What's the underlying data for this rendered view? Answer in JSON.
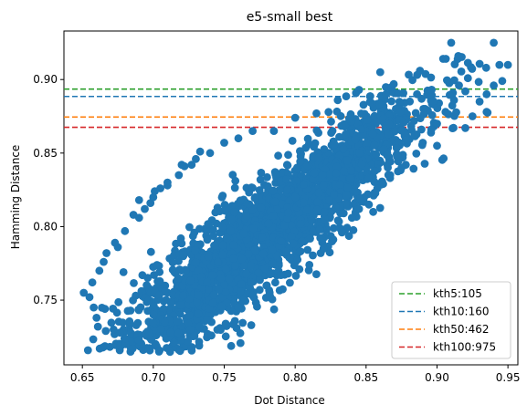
{
  "chart_data": {
    "type": "scatter",
    "title": "e5-small best",
    "xlabel": "Dot Distance",
    "ylabel": "Hamming Distance",
    "xlim": [
      0.637,
      0.957
    ],
    "ylim": [
      0.706,
      0.933
    ],
    "xticks": [
      0.65,
      0.7,
      0.75,
      0.8,
      0.85,
      0.9,
      0.95
    ],
    "xtick_labels": [
      "0.65",
      "0.70",
      "0.75",
      "0.80",
      "0.85",
      "0.90",
      "0.95"
    ],
    "yticks": [
      0.75,
      0.8,
      0.85,
      0.9
    ],
    "ytick_labels": [
      "0.75",
      "0.80",
      "0.85",
      "0.90"
    ],
    "grid": false,
    "legend_position": "lower-right",
    "point_color": "#1f77b4",
    "scatter": {
      "description_trend": "dense elongated cloud, positive correlation",
      "points": [
        [
          0.651,
          0.755
        ],
        [
          0.655,
          0.752
        ],
        [
          0.658,
          0.745
        ],
        [
          0.66,
          0.738
        ],
        [
          0.665,
          0.776
        ],
        [
          0.672,
          0.73
        ],
        [
          0.675,
          0.786
        ],
        [
          0.679,
          0.769
        ],
        [
          0.68,
          0.724
        ],
        [
          0.688,
          0.733
        ],
        [
          0.686,
          0.808
        ],
        [
          0.69,
          0.818
        ],
        [
          0.694,
          0.812
        ],
        [
          0.698,
          0.816
        ],
        [
          0.701,
          0.824
        ],
        [
          0.705,
          0.826
        ],
        [
          0.71,
          0.828
        ],
        [
          0.708,
          0.735
        ],
        [
          0.704,
          0.715
        ],
        [
          0.712,
          0.728
        ],
        [
          0.718,
          0.835
        ],
        [
          0.722,
          0.841
        ],
        [
          0.727,
          0.842
        ],
        [
          0.733,
          0.851
        ],
        [
          0.726,
          0.73
        ],
        [
          0.741,
          0.726
        ],
        [
          0.747,
          0.731
        ],
        [
          0.751,
          0.734
        ],
        [
          0.757,
          0.748
        ],
        [
          0.763,
          0.75
        ],
        [
          0.77,
          0.753
        ],
        [
          0.775,
          0.757
        ],
        [
          0.782,
          0.755
        ],
        [
          0.786,
          0.762
        ],
        [
          0.79,
          0.767
        ],
        [
          0.795,
          0.768
        ],
        [
          0.803,
          0.771
        ],
        [
          0.81,
          0.774
        ],
        [
          0.818,
          0.782
        ],
        [
          0.826,
          0.79
        ],
        [
          0.833,
          0.796
        ],
        [
          0.84,
          0.806
        ],
        [
          0.845,
          0.812
        ],
        [
          0.852,
          0.815
        ],
        [
          0.858,
          0.826
        ],
        [
          0.862,
          0.829
        ],
        [
          0.867,
          0.835
        ],
        [
          0.872,
          0.848
        ],
        [
          0.878,
          0.842
        ],
        [
          0.884,
          0.862
        ],
        [
          0.889,
          0.866
        ],
        [
          0.9,
          0.87
        ],
        [
          0.906,
          0.878
        ],
        [
          0.912,
          0.886
        ],
        [
          0.92,
          0.892
        ],
        [
          0.925,
          0.875
        ],
        [
          0.93,
          0.885
        ],
        [
          0.935,
          0.89
        ],
        [
          0.94,
          0.896
        ],
        [
          0.944,
          0.91
        ],
        [
          0.946,
          0.899
        ],
        [
          0.94,
          0.925
        ],
        [
          0.91,
          0.925
        ],
        [
          0.915,
          0.916
        ],
        [
          0.888,
          0.906
        ],
        [
          0.86,
          0.905
        ],
        [
          0.845,
          0.893
        ],
        [
          0.83,
          0.886
        ],
        [
          0.815,
          0.877
        ],
        [
          0.8,
          0.874
        ],
        [
          0.785,
          0.865
        ],
        [
          0.77,
          0.865
        ],
        [
          0.76,
          0.86
        ],
        [
          0.75,
          0.857
        ],
        [
          0.74,
          0.85
        ],
        [
          0.73,
          0.846
        ],
        [
          0.72,
          0.842
        ],
        [
          0.71,
          0.83
        ],
        [
          0.7,
          0.82
        ],
        [
          0.69,
          0.806
        ],
        [
          0.68,
          0.797
        ],
        [
          0.673,
          0.789
        ],
        [
          0.667,
          0.782
        ],
        [
          0.662,
          0.77
        ],
        [
          0.657,
          0.762
        ],
        [
          0.76,
          0.745
        ],
        [
          0.78,
          0.76
        ],
        [
          0.82,
          0.785
        ],
        [
          0.855,
          0.81
        ],
        [
          0.875,
          0.84
        ],
        [
          0.89,
          0.857
        ],
        [
          0.9,
          0.855
        ],
        [
          0.92,
          0.867
        ],
        [
          0.935,
          0.878
        ],
        [
          0.95,
          0.91
        ]
      ]
    },
    "hlines": [
      {
        "label": "kth5:105",
        "y": 0.8935,
        "color": "#2ca02c"
      },
      {
        "label": "kth10:160",
        "y": 0.8885,
        "color": "#1f77b4"
      },
      {
        "label": "kth50:462",
        "y": 0.8745,
        "color": "#ff7f0e"
      },
      {
        "label": "kth100:975",
        "y": 0.8675,
        "color": "#d62728"
      }
    ]
  }
}
